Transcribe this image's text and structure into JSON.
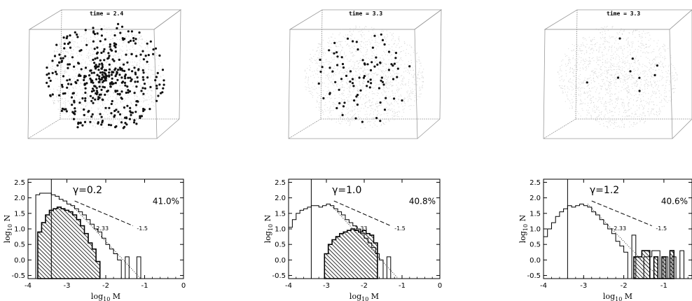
{
  "panels": [
    {
      "time_label": "time = 2.4",
      "gamma_label": "γ=0.2",
      "percent_label": "41.0%",
      "slope_dotted_label": "-2.33",
      "slope_dashed_label": "-1.5",
      "star_density": "high"
    },
    {
      "time_label": "time = 3.3",
      "gamma_label": "γ=1.0",
      "percent_label": "40.8%",
      "slope_dotted_label": "-2.33",
      "slope_dashed_label": "-1.5",
      "star_density": "medium"
    },
    {
      "time_label": "time = 3.3",
      "gamma_label": "γ=1.2",
      "percent_label": "40.6%",
      "slope_dotted_label": "-2.33",
      "slope_dashed_label": "-1.5",
      "star_density": "low"
    }
  ],
  "chart_data": [
    {
      "type": "histogram",
      "xlabel": "log10 M",
      "ylabel": "log10 N",
      "xlim": [
        -4,
        0
      ],
      "ylim": [
        -0.6,
        2.6
      ],
      "xticks": [
        "-4",
        "-3",
        "-2",
        "-1",
        "0"
      ],
      "yticks": [
        "-0.5",
        "0.0",
        "0.5",
        "1.0",
        "1.5",
        "2.0",
        "2.5"
      ],
      "vline_x": -3.4,
      "open_hist": {
        "bin_start": -3.8,
        "bin_width": 0.1,
        "values": [
          2.1,
          2.15,
          2.15,
          2.15,
          2.1,
          2.05,
          1.95,
          1.9,
          1.8,
          1.75,
          1.65,
          1.55,
          1.45,
          1.3,
          1.15,
          1.0,
          0.9,
          0.7,
          0.5,
          0.35,
          0.2,
          0.0,
          -0.6,
          0.1,
          -0.6,
          -0.6,
          0.1
        ]
      },
      "hatched_hist": {
        "bin_start": -3.75,
        "bin_width": 0.1,
        "values": [
          0.9,
          1.2,
          1.45,
          1.6,
          1.65,
          1.7,
          1.65,
          1.6,
          1.55,
          1.45,
          1.3,
          1.1,
          0.85,
          0.55,
          0.35,
          -0.05
        ]
      },
      "dotted_line": {
        "x": [
          -2.9,
          -1.1
        ],
        "y": [
          1.8,
          -0.6
        ]
      },
      "dashed_line": {
        "x": [
          -2.8,
          -1.3
        ],
        "y": [
          1.9,
          1.1
        ]
      }
    },
    {
      "type": "histogram",
      "xlabel": "log10 M",
      "ylabel": "log10 N",
      "xlim": [
        -4,
        0
      ],
      "ylim": [
        -0.6,
        2.6
      ],
      "xticks": [
        "-4",
        "-3",
        "-2",
        "-1",
        "0"
      ],
      "yticks": [
        "-0.5",
        "0.0",
        "0.5",
        "1.0",
        "1.5",
        "2.0",
        "2.5"
      ],
      "vline_x": -3.4,
      "open_hist": {
        "bin_start": -4.0,
        "bin_width": 0.1,
        "values": [
          1.05,
          1.3,
          1.5,
          1.6,
          1.65,
          1.7,
          1.75,
          1.75,
          1.7,
          1.75,
          1.8,
          1.75,
          1.65,
          1.55,
          1.45,
          1.3,
          1.2,
          1.1,
          1.0,
          0.85,
          0.7,
          0.55,
          0.4,
          0.2,
          0.0,
          -0.6,
          0.1,
          -0.6,
          -0.6
        ]
      },
      "hatched_hist": {
        "bin_start": -3.05,
        "bin_width": 0.1,
        "values": [
          0.2,
          0.5,
          0.65,
          0.75,
          0.85,
          0.9,
          0.95,
          1.0,
          0.95,
          0.9,
          0.95,
          0.85,
          0.8,
          0.55
        ]
      },
      "dotted_line": {
        "x": [
          -2.9,
          -1.1
        ],
        "y": [
          1.8,
          -0.6
        ]
      },
      "dashed_line": {
        "x": [
          -2.8,
          -1.3
        ],
        "y": [
          1.9,
          1.1
        ]
      }
    },
    {
      "type": "histogram",
      "xlabel": "log10 M",
      "ylabel": "log10 N",
      "xlim": [
        -4,
        -0.3
      ],
      "ylim": [
        -0.6,
        2.6
      ],
      "xticks": [
        "-4",
        "-3",
        "-2",
        "-1"
      ],
      "yticks": [
        "-0.5",
        "0.0",
        "0.5",
        "1.0",
        "1.5",
        "2.0",
        "2.5"
      ],
      "vline_x": -3.4,
      "open_hist": {
        "bin_start": -4.0,
        "bin_width": 0.1,
        "values": [
          0.75,
          1.0,
          1.2,
          1.4,
          1.55,
          1.65,
          1.75,
          1.7,
          1.75,
          1.8,
          1.75,
          1.7,
          1.55,
          1.45,
          1.3,
          1.15,
          1.0,
          0.85,
          0.6,
          0.45,
          0.25,
          -0.6,
          0.8,
          -0.6,
          -0.6,
          0.1,
          0.1,
          0.3,
          0.3,
          -0.6,
          0.1,
          -0.6,
          0.1,
          -0.6,
          0.3,
          -0.6
        ]
      },
      "hatched_hist": {
        "bin_start": -1.75,
        "bin_width": 0.1,
        "values": [
          0.1,
          0.1,
          0.3,
          0.3,
          -0.6,
          0.1,
          -0.6,
          0.1,
          -0.6,
          0.3
        ]
      },
      "dotted_line": {
        "x": [
          -2.9,
          -1.1
        ],
        "y": [
          1.8,
          -0.6
        ]
      },
      "dashed_line": {
        "x": [
          -2.8,
          -1.3
        ],
        "y": [
          1.9,
          1.1
        ]
      }
    }
  ]
}
